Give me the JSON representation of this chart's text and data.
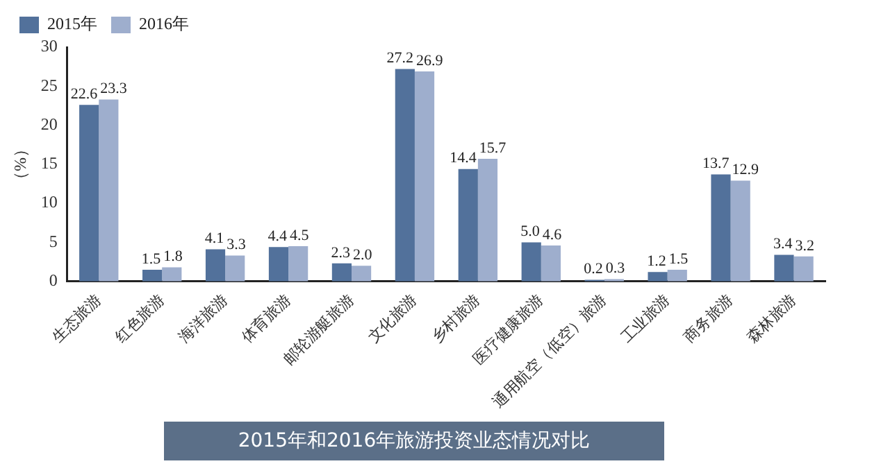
{
  "chart_data": {
    "type": "bar",
    "title": "2015年和2016年旅游投资业态情况对比",
    "ylabel": "（%）",
    "categories": [
      "生态旅游",
      "红色旅游",
      "海洋旅游",
      "体育旅游",
      "邮轮游艇旅游",
      "文化旅游",
      "乡村旅游",
      "医疗健康旅游",
      "通用航空（低空）旅游",
      "工业旅游",
      "商务旅游",
      "森林旅游"
    ],
    "series": [
      {
        "name": "2015年",
        "color": "#52719b",
        "values": [
          22.6,
          1.5,
          4.1,
          4.4,
          2.3,
          27.2,
          14.4,
          5.0,
          0.2,
          1.2,
          13.7,
          3.4
        ],
        "value_labels": [
          "22.6",
          "1.5",
          "4.1",
          "4.4",
          "2.3",
          "27.2",
          "14.4",
          "5.0",
          "0.2",
          "1.2",
          "13.7",
          "3.4"
        ]
      },
      {
        "name": "2016年",
        "color": "#9eaecd",
        "values": [
          23.3,
          1.8,
          3.3,
          4.5,
          2.0,
          26.9,
          15.7,
          4.6,
          0.3,
          1.5,
          12.9,
          3.2
        ],
        "value_labels": [
          "23.3",
          "1.8",
          "3.3",
          "4.5",
          "2.0",
          "26.9",
          "15.7",
          "4.6",
          "0.3",
          "1.5",
          "12.9",
          "3.2"
        ]
      }
    ],
    "ylim": [
      0,
      30
    ],
    "yticks": [
      0,
      5,
      10,
      15,
      20,
      25,
      30
    ],
    "grid": false,
    "legend": "top left"
  }
}
